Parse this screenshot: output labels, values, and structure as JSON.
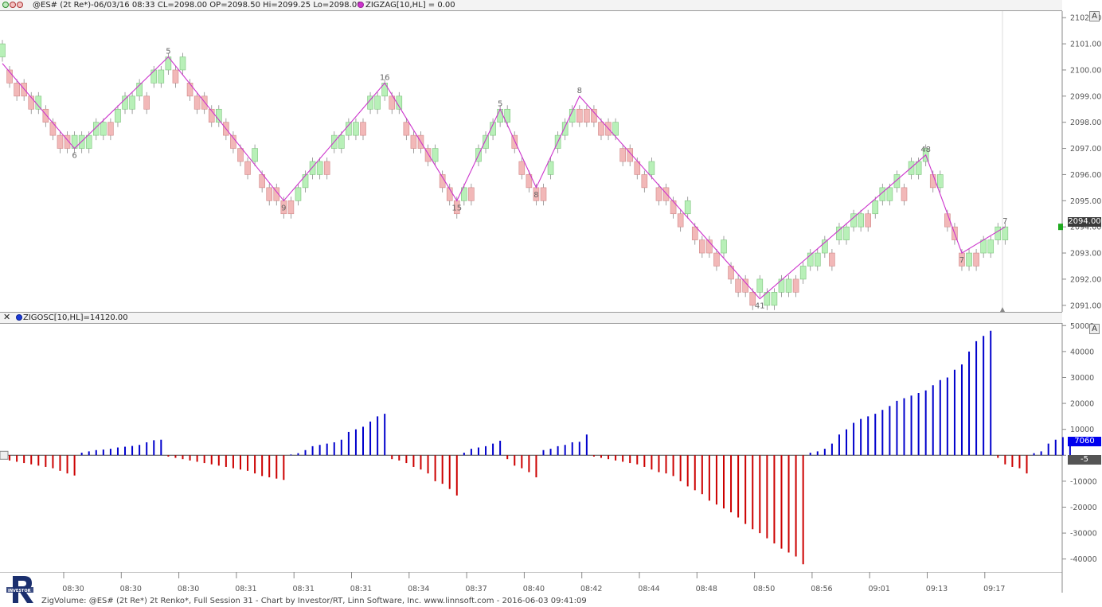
{
  "price_header": {
    "instrument": "@ES# (2t Re*)-06/03/16 08:33 CL=2098.00 OP=2098.50 Hi=2099.25 Lo=2098.00",
    "indicator": "ZIGZAG[10,HL] = 0.00"
  },
  "osc_header": {
    "indicator": "ZIGOSC[10,HL]=14120.00"
  },
  "price_axis": {
    "ticks": [
      "2102.00",
      "2101.00",
      "2100.00",
      "2099.00",
      "2098.00",
      "2097.00",
      "2096.00",
      "2095.00",
      "2094.00",
      "2093.00",
      "2092.00",
      "2091.00"
    ],
    "last_price": "2094.00",
    "corner_label": "A"
  },
  "osc_axis": {
    "ticks": [
      "50000",
      "40000",
      "30000",
      "20000",
      "10000",
      "0",
      "-10000",
      "-20000",
      "-30000",
      "-40000"
    ],
    "current_value": "7060",
    "zero_label": "-5",
    "corner_label": "A"
  },
  "time_axis": {
    "labels": [
      "08:30",
      "08:30",
      "08:30",
      "08:31",
      "08:31",
      "08:31",
      "08:34",
      "08:37",
      "08:40",
      "08:42",
      "08:44",
      "08:48",
      "08:50",
      "08:56",
      "09:01",
      "09:13",
      "09:17"
    ]
  },
  "zigzag_labels": [
    "6",
    "5",
    "9",
    "16",
    "15",
    "5",
    "8",
    "8",
    "41",
    "48",
    "7",
    "7"
  ],
  "footer": "ZigVolume: @ES# (2t Re*) 2t Renko*, Full Session 31 - Chart by Investor/RT, Linn Software, Inc. www.linnsoft.com - 2016-06-03 09:41:09",
  "colors": {
    "up_brick": "#b8f0b8",
    "down_brick": "#f2b8b8",
    "zigzag": "#cc33cc",
    "osc_up": "#0000cc",
    "osc_down": "#cc0000",
    "value_box": "#0000ee"
  },
  "chart_data": [
    {
      "type": "line",
      "title": "",
      "series": [
        {
          "name": "ZIGZAG[10,HL]",
          "pivots": [
            {
              "t": 0,
              "price": 2100.25
            },
            {
              "t": 10,
              "price": 2097.0
            },
            {
              "t": 23,
              "price": 2100.5
            },
            {
              "t": 39,
              "price": 2095.0
            },
            {
              "t": 53,
              "price": 2099.5
            },
            {
              "t": 63,
              "price": 2095.0
            },
            {
              "t": 69,
              "price": 2098.5
            },
            {
              "t": 74,
              "price": 2095.5
            },
            {
              "t": 80,
              "price": 2099.0
            },
            {
              "t": 105,
              "price": 2091.25
            },
            {
              "t": 128,
              "price": 2096.75
            },
            {
              "t": 133,
              "price": 2093.0
            },
            {
              "t": 139,
              "price": 2094.0
            }
          ]
        }
      ],
      "renko_brick_size": 0.5,
      "ylim": [
        2090.75,
        2102.25
      ]
    },
    {
      "type": "bar",
      "title": "",
      "series": [
        {
          "name": "ZIGOSC[10,HL]",
          "values": [
            -1500,
            -2000,
            -2500,
            -3000,
            -3500,
            -4000,
            -4500,
            -5000,
            -6000,
            -7000,
            -7800,
            1000,
            1500,
            2000,
            2200,
            2500,
            3000,
            3300,
            3600,
            4000,
            5000,
            5800,
            6000,
            -500,
            -1000,
            -1500,
            -2000,
            -2500,
            -3000,
            -3500,
            -4000,
            -4500,
            -5000,
            -5500,
            -6000,
            -7000,
            -8000,
            -8500,
            -9000,
            -9500,
            300,
            800,
            2000,
            3500,
            4000,
            4500,
            5000,
            6000,
            9000,
            10000,
            11000,
            13000,
            15000,
            16000,
            -1500,
            -2000,
            -3000,
            -4500,
            -5500,
            -7000,
            -10000,
            -11000,
            -13000,
            -15500,
            1000,
            2500,
            3000,
            3500,
            4500,
            5600,
            -1500,
            -4000,
            -5000,
            -6500,
            -8500,
            2000,
            2500,
            3500,
            4000,
            5000,
            5200,
            8000,
            -500,
            -1000,
            -1500,
            -2000,
            -2500,
            -3000,
            -3500,
            -4500,
            -5500,
            -6500,
            -7000,
            -8000,
            -10000,
            -12000,
            -13500,
            -15000,
            -17500,
            -19000,
            -20500,
            -22000,
            -24000,
            -26500,
            -28500,
            -30000,
            -32000,
            -34000,
            -36000,
            -37500,
            -39000,
            -42000,
            1000,
            1500,
            2500,
            4500,
            8000,
            10000,
            12500,
            14000,
            15000,
            16000,
            17500,
            19000,
            21000,
            22000,
            23000,
            24000,
            25000,
            27000,
            29000,
            30000,
            33000,
            35000,
            40000,
            44000,
            46000,
            48000,
            -1000,
            -3500,
            -4500,
            -5000,
            -7000,
            800,
            1500,
            4500,
            6000,
            7000,
            7060
          ]
        }
      ],
      "ylim": [
        -45000,
        51000
      ]
    }
  ]
}
